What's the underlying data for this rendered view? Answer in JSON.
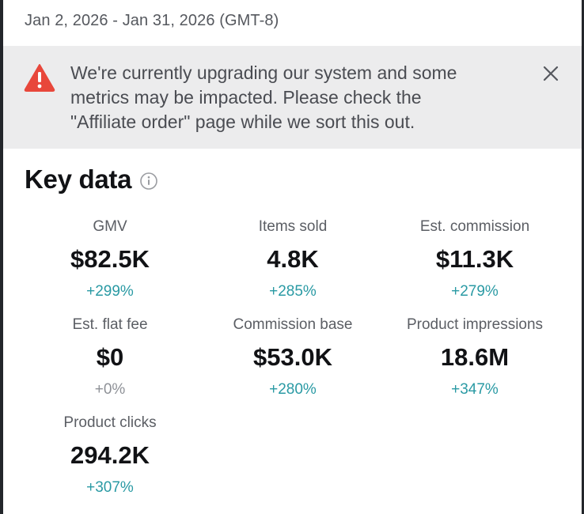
{
  "date_range": "Jan 2, 2026 - Jan 31, 2026 (GMT-8)",
  "banner": {
    "lines": [
      "We're currently upgrading our system and some",
      "metrics may be impacted. Please check the",
      "\"Affiliate order\" page while we sort this out."
    ],
    "icon": "warning-triangle-icon",
    "close_icon": "close-icon"
  },
  "key_data": {
    "title": "Key data",
    "info_icon": "info-icon",
    "metrics": [
      {
        "label": "GMV",
        "value": "$82.5K",
        "change": "+299%"
      },
      {
        "label": "Items sold",
        "value": "4.8K",
        "change": "+285%"
      },
      {
        "label": "Est. commission",
        "value": "$11.3K",
        "change": "+279%"
      },
      {
        "label": "Est. flat fee",
        "value": "$0",
        "change": "+0%"
      },
      {
        "label": "Commission base",
        "value": "$53.0K",
        "change": "+280%"
      },
      {
        "label": "Product impressions",
        "value": "18.6M",
        "change": "+347%"
      },
      {
        "label": "Product clicks",
        "value": "294.2K",
        "change": "+307%"
      }
    ]
  },
  "colors": {
    "positive_change": "#2a9aa4",
    "neutral_change": "#8e9197",
    "warning": "#e8473b",
    "banner_bg": "#ececed"
  }
}
